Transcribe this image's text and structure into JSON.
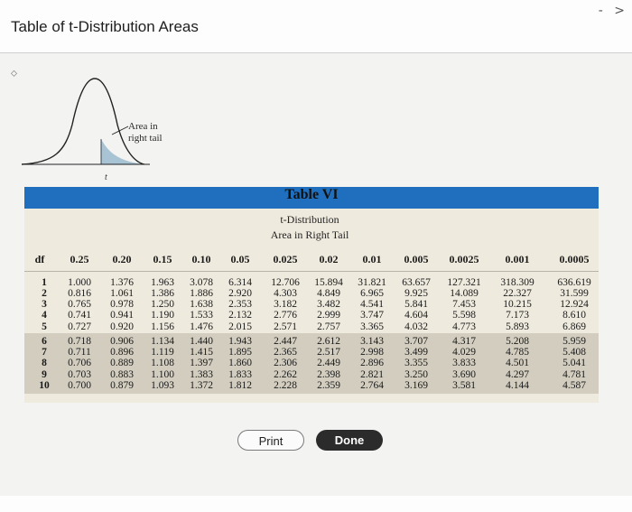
{
  "window": {
    "title": "Table of t-Distribution Areas",
    "controls": "- >"
  },
  "icon": {
    "name": "resize-icon",
    "glyph": "⬦"
  },
  "figure": {
    "area_label_line1": "Area in",
    "area_label_line2": "right tail",
    "t_label": "t"
  },
  "table": {
    "name": "Table VI",
    "subtitle": "t-Distribution",
    "caption": "Area in Right Tail",
    "df_header": "df",
    "columns": [
      "0.25",
      "0.20",
      "0.15",
      "0.10",
      "0.05",
      "0.025",
      "0.02",
      "0.01",
      "0.005",
      "0.0025",
      "0.001",
      "0.0005"
    ],
    "rows": [
      {
        "df": "1",
        "values": [
          "1.000",
          "1.376",
          "1.963",
          "3.078",
          "6.314",
          "12.706",
          "15.894",
          "31.821",
          "63.657",
          "127.321",
          "318.309",
          "636.619"
        ]
      },
      {
        "df": "2",
        "values": [
          "0.816",
          "1.061",
          "1.386",
          "1.886",
          "2.920",
          "4.303",
          "4.849",
          "6.965",
          "9.925",
          "14.089",
          "22.327",
          "31.599"
        ]
      },
      {
        "df": "3",
        "values": [
          "0.765",
          "0.978",
          "1.250",
          "1.638",
          "2.353",
          "3.182",
          "3.482",
          "4.541",
          "5.841",
          "7.453",
          "10.215",
          "12.924"
        ]
      },
      {
        "df": "4",
        "values": [
          "0.741",
          "0.941",
          "1.190",
          "1.533",
          "2.132",
          "2.776",
          "2.999",
          "3.747",
          "4.604",
          "5.598",
          "7.173",
          "8.610"
        ]
      },
      {
        "df": "5",
        "values": [
          "0.727",
          "0.920",
          "1.156",
          "1.476",
          "2.015",
          "2.571",
          "2.757",
          "3.365",
          "4.032",
          "4.773",
          "5.893",
          "6.869"
        ]
      },
      {
        "df": "6",
        "values": [
          "0.718",
          "0.906",
          "1.134",
          "1.440",
          "1.943",
          "2.447",
          "2.612",
          "3.143",
          "3.707",
          "4.317",
          "5.208",
          "5.959"
        ]
      },
      {
        "df": "7",
        "values": [
          "0.711",
          "0.896",
          "1.119",
          "1.415",
          "1.895",
          "2.365",
          "2.517",
          "2.998",
          "3.499",
          "4.029",
          "4.785",
          "5.408"
        ]
      },
      {
        "df": "8",
        "values": [
          "0.706",
          "0.889",
          "1.108",
          "1.397",
          "1.860",
          "2.306",
          "2.449",
          "2.896",
          "3.355",
          "3.833",
          "4.501",
          "5.041"
        ]
      },
      {
        "df": "9",
        "values": [
          "0.703",
          "0.883",
          "1.100",
          "1.383",
          "1.833",
          "2.262",
          "2.398",
          "2.821",
          "3.250",
          "3.690",
          "4.297",
          "4.781"
        ]
      },
      {
        "df": "10",
        "values": [
          "0.700",
          "0.879",
          "1.093",
          "1.372",
          "1.812",
          "2.228",
          "2.359",
          "2.764",
          "3.169",
          "3.581",
          "4.144",
          "4.587"
        ]
      }
    ]
  },
  "buttons": {
    "print": "Print",
    "done": "Done"
  },
  "colors": {
    "band": "#1f6fbe",
    "table_bg": "#efeade",
    "shaded_rows": "#d2cdbf",
    "done_button": "#2b2b2b"
  }
}
